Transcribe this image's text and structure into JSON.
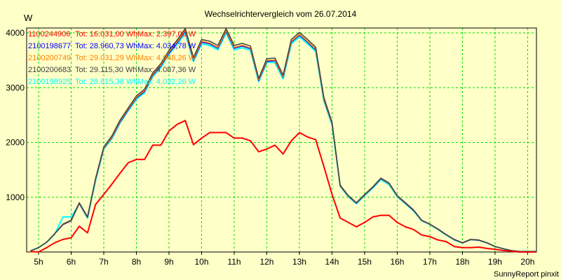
{
  "chart_data": {
    "type": "line",
    "title": "Wechselrichtervergleich vom 26.07.2014",
    "ylabel": "W",
    "xlabel": "",
    "credit": "SunnyReport pinxit",
    "xlim": [
      4.634,
      20.27
    ],
    "ylim": [
      0,
      4090
    ],
    "grid": true,
    "legend_placement": "top-left",
    "x_ticks": [
      5,
      6,
      7,
      8,
      9,
      10,
      11,
      12,
      13,
      14,
      15,
      16,
      17,
      18,
      19,
      20
    ],
    "x_tick_labels": [
      "5h",
      "6h",
      "7h",
      "8h",
      "9h",
      "10h",
      "11h",
      "12h",
      "13h",
      "14h",
      "15h",
      "16h",
      "17h",
      "18h",
      "19h",
      "20h"
    ],
    "y_ticks": [
      1000,
      2000,
      3000,
      4000
    ],
    "y_tick_labels": [
      "1000",
      "2000",
      "3000",
      "4000"
    ],
    "x_start": 4.75,
    "x_step": 0.25,
    "series": [
      {
        "name": "1100244906",
        "total": "Tot: 16.031,00 Wh",
        "max": "Max: 2.397,00 W",
        "color": "#ff0000",
        "width": 2,
        "values": [
          10,
          0,
          80,
          170,
          230,
          260,
          470,
          350,
          870,
          1050,
          1240,
          1440,
          1630,
          1690,
          1690,
          1950,
          1950,
          2210,
          2330,
          2400,
          1960,
          2080,
          2180,
          2180,
          2180,
          2080,
          2080,
          2030,
          1830,
          1880,
          1950,
          1790,
          2030,
          2180,
          2100,
          2050,
          1560,
          1050,
          620,
          540,
          460,
          540,
          640,
          670,
          670,
          540,
          460,
          410,
          310,
          280,
          220,
          190,
          100,
          80,
          80,
          90,
          65,
          50,
          30,
          15,
          0,
          0,
          0
        ]
      },
      {
        "name": "2100198677",
        "total": "Tot: 28.960,73 Wh",
        "max": "Max: 4.034,78 W",
        "color": "#0000ff",
        "width": 1.5,
        "values": [
          20,
          80,
          180,
          335,
          500,
          570,
          885,
          630,
          1330,
          1895,
          2090,
          2375,
          2595,
          2810,
          2930,
          3225,
          3395,
          3630,
          3820,
          4030,
          3500,
          3830,
          3800,
          3720,
          4030,
          3720,
          3760,
          3710,
          3130,
          3480,
          3490,
          3190,
          3830,
          3960,
          3830,
          3690,
          2780,
          2340,
          1205,
          1020,
          890,
          1040,
          1180,
          1340,
          1250,
          1020,
          890,
          760,
          575,
          505,
          415,
          315,
          225,
          165,
          225,
          215,
          165,
          100,
          60,
          25,
          10,
          10,
          10
        ]
      },
      {
        "name": "2100200749",
        "total": "Tot: 29.031,29 Wh",
        "max": "Max: 4.048,26 W",
        "color": "#ff8000",
        "width": 1.5,
        "values": [
          20,
          80,
          180,
          338,
          505,
          575,
          890,
          635,
          1340,
          1905,
          2100,
          2390,
          2610,
          2825,
          2945,
          3240,
          3410,
          3650,
          3840,
          4045,
          3520,
          3850,
          3815,
          3735,
          4048,
          3735,
          3775,
          3725,
          3145,
          3500,
          3505,
          3200,
          3845,
          3975,
          3845,
          3705,
          2795,
          2350,
          1210,
          1025,
          895,
          1045,
          1185,
          1345,
          1255,
          1025,
          895,
          765,
          578,
          508,
          418,
          318,
          228,
          168,
          228,
          218,
          168,
          100,
          60,
          25,
          10,
          10,
          10
        ]
      },
      {
        "name": "2100200683",
        "total": "Tot: 29.115,30 Wh",
        "max": "Max: 4.087,36 W",
        "color": "#404040",
        "width": 1.5,
        "values": [
          20,
          80,
          180,
          340,
          510,
          580,
          900,
          640,
          1350,
          1920,
          2120,
          2410,
          2630,
          2850,
          2970,
          3270,
          3440,
          3680,
          3870,
          4080,
          3550,
          3880,
          3850,
          3770,
          4080,
          3770,
          3810,
          3760,
          3170,
          3530,
          3540,
          3230,
          3880,
          4010,
          3880,
          3740,
          2820,
          2370,
          1220,
          1030,
          900,
          1050,
          1190,
          1350,
          1260,
          1030,
          900,
          770,
          580,
          510,
          420,
          320,
          230,
          170,
          230,
          220,
          170,
          100,
          60,
          25,
          10,
          10,
          10
        ]
      },
      {
        "name": "2100198925",
        "total": "Tot: 28.815,38 Wh",
        "max": "Max: 4.032,26 W",
        "color": "#00ffff",
        "width": 2,
        "values": [
          20,
          80,
          175,
          330,
          640,
          640,
          880,
          620,
          1310,
          1880,
          2070,
          2360,
          2580,
          2790,
          2910,
          3200,
          3370,
          3610,
          3790,
          4000,
          3480,
          3800,
          3770,
          3690,
          4000,
          3690,
          3730,
          3680,
          3110,
          3460,
          3460,
          3160,
          3800,
          3930,
          3800,
          3660,
          2760,
          2320,
          1200,
          1010,
          880,
          1030,
          1170,
          1320,
          1230,
          1010,
          880,
          750,
          570,
          500,
          410,
          310,
          220,
          165,
          225,
          215,
          165,
          100,
          60,
          25,
          10,
          10,
          10
        ]
      }
    ]
  }
}
